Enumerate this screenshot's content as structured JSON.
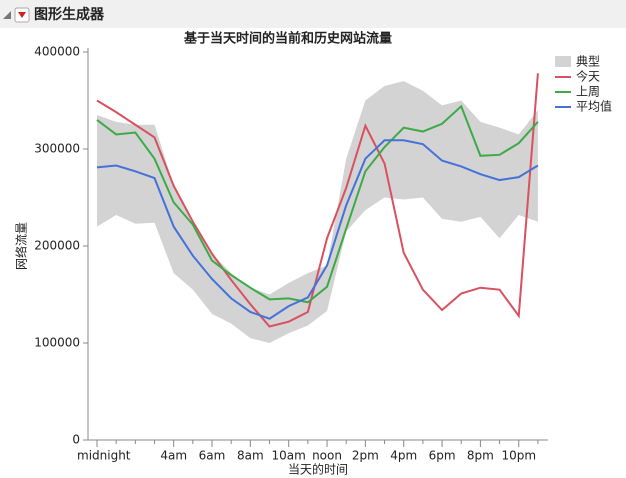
{
  "header": {
    "title": "图形生成器"
  },
  "chart_data": {
    "type": "line",
    "title": "基于当天时间的当前和历史网站流量",
    "x_label": "当天的时间",
    "y_label": "网络流量",
    "categories": [
      "midnight",
      null,
      null,
      null,
      "4am",
      null,
      "6am",
      null,
      "8am",
      null,
      "10am",
      null,
      "noon",
      null,
      "2pm",
      null,
      "4pm",
      null,
      "6pm",
      null,
      "8pm",
      null,
      "10pm",
      null
    ],
    "ylim": [
      0,
      400000
    ],
    "yticks": [
      0,
      100000,
      200000,
      300000,
      400000
    ],
    "band": {
      "name": "典型",
      "color": "#d3d3d3",
      "upper": [
        335000,
        328000,
        325000,
        325000,
        262000,
        222000,
        192000,
        172000,
        157000,
        150000,
        162000,
        172000,
        180000,
        290000,
        350000,
        365000,
        370000,
        360000,
        345000,
        350000,
        328000,
        322000,
        315000,
        340000
      ],
      "lower": [
        220000,
        232000,
        223000,
        224000,
        172000,
        155000,
        130000,
        120000,
        105000,
        100000,
        110000,
        118000,
        133000,
        215000,
        237000,
        250000,
        248000,
        250000,
        228000,
        225000,
        230000,
        208000,
        232000,
        225000
      ]
    },
    "series": [
      {
        "name": "今天",
        "color": "#d9505e",
        "values": [
          350000,
          338000,
          325000,
          312000,
          262000,
          225000,
          192000,
          165000,
          140000,
          117000,
          122000,
          132000,
          208000,
          260000,
          324000,
          285000,
          193000,
          155000,
          134000,
          151000,
          157000,
          155000,
          128000,
          378000
        ]
      },
      {
        "name": "上周",
        "color": "#3daa47",
        "values": [
          330000,
          315000,
          317000,
          290000,
          245000,
          222000,
          185000,
          170000,
          157000,
          145000,
          146000,
          142000,
          158000,
          218000,
          277000,
          302000,
          322000,
          318000,
          326000,
          344000,
          293000,
          294000,
          306000,
          328000
        ]
      },
      {
        "name": "平均值",
        "color": "#4472d9",
        "values": [
          281000,
          283000,
          277000,
          270000,
          220000,
          190000,
          166000,
          146000,
          132000,
          125000,
          138000,
          147000,
          180000,
          242000,
          290000,
          309000,
          309000,
          305000,
          288000,
          282000,
          274000,
          268000,
          271000,
          283000
        ]
      }
    ]
  }
}
